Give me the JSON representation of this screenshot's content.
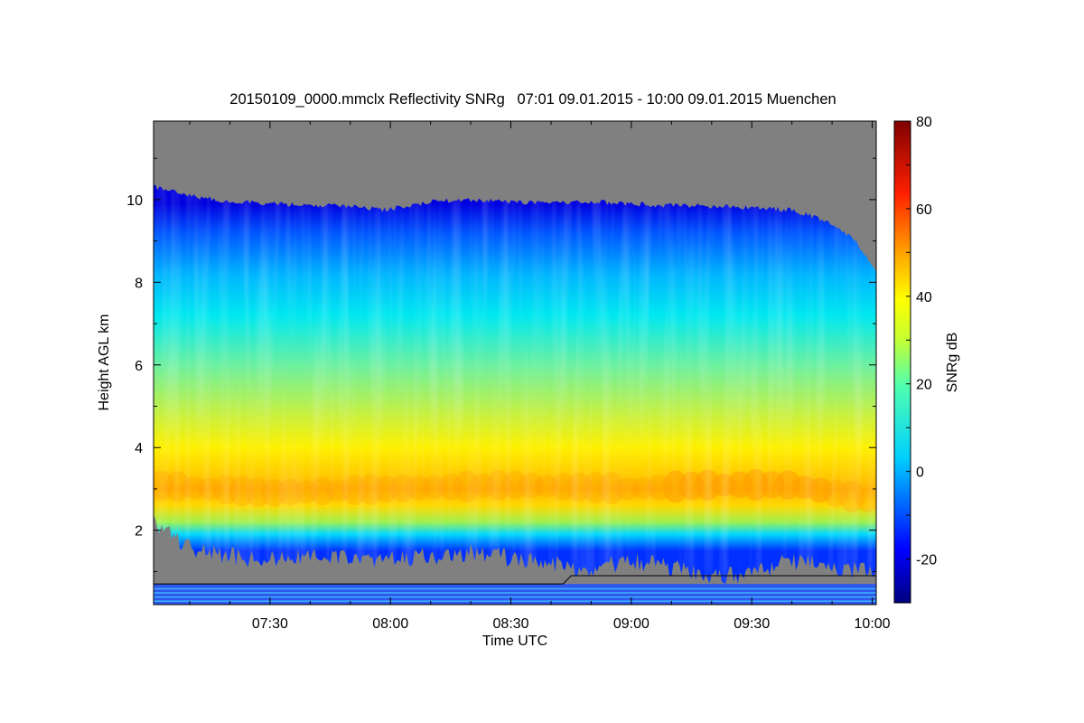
{
  "chart_data": {
    "type": "heatmap",
    "title": "20150109_0000.mmclx Reflectivity SNRg   07:01 09.01.2015 - 10:00 09.01.2015 Muenchen",
    "xlabel": "Time UTC",
    "ylabel": "Height AGL km",
    "colorbar_label": "SNRg dB",
    "x_range_minutes_utc": [
      421,
      601
    ],
    "y_range_km": [
      0.2,
      11.9
    ],
    "x_ticks": [
      {
        "minute": 450,
        "label": "07:30"
      },
      {
        "minute": 480,
        "label": "08:00"
      },
      {
        "minute": 510,
        "label": "08:30"
      },
      {
        "minute": 540,
        "label": "09:00"
      },
      {
        "minute": 570,
        "label": "09:30"
      },
      {
        "minute": 600,
        "label": "10:00"
      }
    ],
    "y_ticks": [
      {
        "value": 2,
        "label": "2"
      },
      {
        "value": 4,
        "label": "4"
      },
      {
        "value": 6,
        "label": "6"
      },
      {
        "value": 8,
        "label": "8"
      },
      {
        "value": 10,
        "label": "10"
      }
    ],
    "colorbar_range_db": [
      -30,
      80
    ],
    "colorbar_ticks": [
      {
        "value": -20,
        "label": "-20"
      },
      {
        "value": 0,
        "label": "0"
      },
      {
        "value": 20,
        "label": "20"
      },
      {
        "value": 40,
        "label": "40"
      },
      {
        "value": 60,
        "label": "60"
      },
      {
        "value": 80,
        "label": "80"
      }
    ],
    "no_signal_color": "#808080",
    "cloud_top_km": [
      {
        "minute": 421,
        "value": 10.3
      },
      {
        "minute": 430,
        "value": 10.1
      },
      {
        "minute": 440,
        "value": 9.95
      },
      {
        "minute": 450,
        "value": 9.9
      },
      {
        "minute": 460,
        "value": 9.85
      },
      {
        "minute": 470,
        "value": 9.85
      },
      {
        "minute": 478,
        "value": 9.75
      },
      {
        "minute": 490,
        "value": 9.95
      },
      {
        "minute": 500,
        "value": 10.0
      },
      {
        "minute": 510,
        "value": 9.95
      },
      {
        "minute": 520,
        "value": 9.9
      },
      {
        "minute": 530,
        "value": 9.95
      },
      {
        "minute": 540,
        "value": 9.9
      },
      {
        "minute": 550,
        "value": 9.85
      },
      {
        "minute": 560,
        "value": 9.85
      },
      {
        "minute": 570,
        "value": 9.8
      },
      {
        "minute": 580,
        "value": 9.75
      },
      {
        "minute": 588,
        "value": 9.5
      },
      {
        "minute": 595,
        "value": 9.1
      },
      {
        "minute": 601,
        "value": 8.3
      }
    ],
    "cloud_base_km": [
      {
        "minute": 421,
        "value": 2.4
      },
      {
        "minute": 430,
        "value": 1.8
      },
      {
        "minute": 440,
        "value": 1.6
      },
      {
        "minute": 450,
        "value": 1.5
      },
      {
        "minute": 460,
        "value": 1.6
      },
      {
        "minute": 470,
        "value": 1.55
      },
      {
        "minute": 480,
        "value": 1.5
      },
      {
        "minute": 490,
        "value": 1.6
      },
      {
        "minute": 500,
        "value": 1.7
      },
      {
        "minute": 510,
        "value": 1.55
      },
      {
        "minute": 520,
        "value": 1.4
      },
      {
        "minute": 530,
        "value": 1.3
      },
      {
        "minute": 540,
        "value": 1.5
      },
      {
        "minute": 550,
        "value": 1.3
      },
      {
        "minute": 560,
        "value": 1.1
      },
      {
        "minute": 570,
        "value": 1.2
      },
      {
        "minute": 580,
        "value": 1.5
      },
      {
        "minute": 590,
        "value": 1.3
      },
      {
        "minute": 601,
        "value": 1.2
      }
    ],
    "max_band_center_km": [
      {
        "minute": 421,
        "value": 3.1
      },
      {
        "minute": 450,
        "value": 2.9
      },
      {
        "minute": 480,
        "value": 3.0
      },
      {
        "minute": 510,
        "value": 3.1
      },
      {
        "minute": 540,
        "value": 3.0
      },
      {
        "minute": 560,
        "value": 3.1
      },
      {
        "minute": 580,
        "value": 3.1
      },
      {
        "minute": 601,
        "value": 2.7
      }
    ],
    "aliasing_line_km": [
      {
        "minute": 421,
        "value": 0.7
      },
      {
        "minute": 523,
        "value": 0.7
      },
      {
        "minute": 525,
        "value": 0.9
      },
      {
        "minute": 601,
        "value": 0.9
      }
    ],
    "near_ground_clutter_km": [
      0.2,
      0.7
    ]
  }
}
